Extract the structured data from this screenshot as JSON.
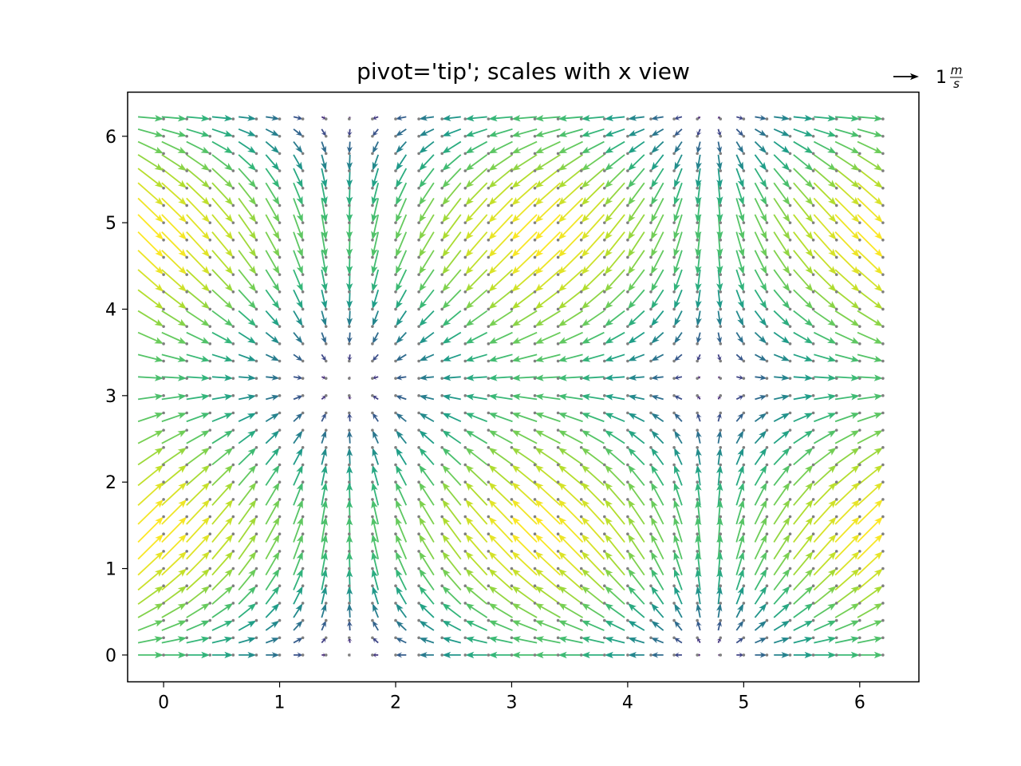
{
  "chart_data": {
    "type": "quiver",
    "title": "pivot='tip'; scales with x view",
    "xlabel": "",
    "ylabel": "",
    "xlim": [
      -0.31,
      6.51
    ],
    "ylim": [
      -0.31,
      6.51
    ],
    "xticks": [
      "0",
      "1",
      "2",
      "3",
      "4",
      "5",
      "6"
    ],
    "yticks": [
      "0",
      "1",
      "2",
      "3",
      "4",
      "5",
      "6"
    ],
    "grid": false,
    "field": {
      "x_range": [
        0,
        6.2
      ],
      "y_range": [
        0,
        6.2
      ],
      "step": 0.2,
      "u": "cos(x)",
      "v": "sin(y)",
      "color_by": "magnitude",
      "colormap": "viridis",
      "pivot": "tip",
      "show_grid_points": true,
      "point_color": "#7f7f7f"
    },
    "quiverkey": {
      "value": 1,
      "label_main": "1",
      "label_num": "m",
      "label_den": "s",
      "position": "top-right outside axes"
    }
  }
}
